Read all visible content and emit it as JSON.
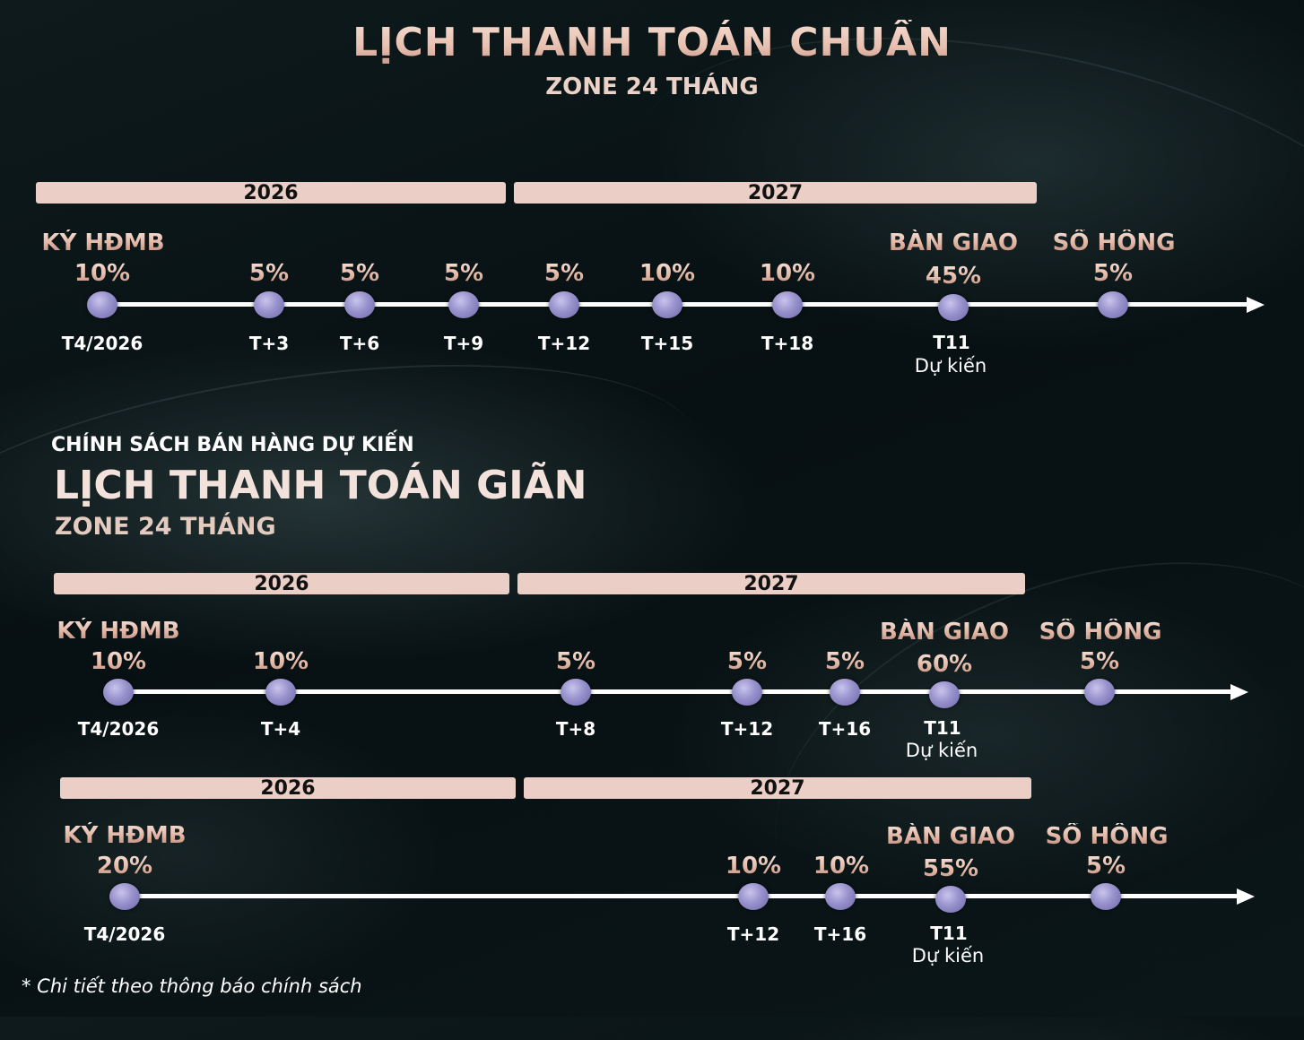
{
  "header": {
    "title": "LỊCH THANH TOÁN CHUẨN",
    "subtitle": "ZONE 24 THÁNG"
  },
  "section2": {
    "policy_label": "CHÍNH SÁCH BÁN HÀNG DỰ KIẾN",
    "title": "LỊCH THANH TOÁN GIÃN",
    "subtitle": "ZONE 24 THÁNG"
  },
  "timeline1": {
    "years": [
      "2026",
      "2027"
    ],
    "milestones": [
      {
        "label": "KÝ HĐMB",
        "pct": "10%",
        "date": "T4/2026",
        "note": ""
      },
      {
        "label": "",
        "pct": "5%",
        "date": "T+3",
        "note": ""
      },
      {
        "label": "",
        "pct": "5%",
        "date": "T+6",
        "note": ""
      },
      {
        "label": "",
        "pct": "5%",
        "date": "T+9",
        "note": ""
      },
      {
        "label": "",
        "pct": "5%",
        "date": "T+12",
        "note": ""
      },
      {
        "label": "",
        "pct": "10%",
        "date": "T+15",
        "note": ""
      },
      {
        "label": "",
        "pct": "10%",
        "date": "T+18",
        "note": ""
      },
      {
        "label": "BÀN GIAO",
        "pct": "45%",
        "date": "T11",
        "note": "Dự kiến"
      },
      {
        "label": "SỔ HỒNG",
        "pct": "5%",
        "date": "",
        "note": ""
      }
    ]
  },
  "timeline2": {
    "years": [
      "2026",
      "2027"
    ],
    "milestones": [
      {
        "label": "KÝ HĐMB",
        "pct": "10%",
        "date": "T4/2026",
        "note": ""
      },
      {
        "label": "",
        "pct": "10%",
        "date": "T+4",
        "note": ""
      },
      {
        "label": "",
        "pct": "5%",
        "date": "T+8",
        "note": ""
      },
      {
        "label": "",
        "pct": "5%",
        "date": "T+12",
        "note": ""
      },
      {
        "label": "",
        "pct": "5%",
        "date": "T+16",
        "note": ""
      },
      {
        "label": "BÀN GIAO",
        "pct": "60%",
        "date": "T11",
        "note": "Dự kiến"
      },
      {
        "label": "SỔ HỒNG",
        "pct": "5%",
        "date": "",
        "note": ""
      }
    ]
  },
  "timeline3": {
    "years": [
      "2026",
      "2027"
    ],
    "milestones": [
      {
        "label": "KÝ HĐMB",
        "pct": "20%",
        "date": "T4/2026",
        "note": ""
      },
      {
        "label": "",
        "pct": "10%",
        "date": "T+12",
        "note": ""
      },
      {
        "label": "",
        "pct": "10%",
        "date": "T+16",
        "note": ""
      },
      {
        "label": "BÀN GIAO",
        "pct": "55%",
        "date": "T11",
        "note": "Dự kiến"
      },
      {
        "label": "SỔ HỒNG",
        "pct": "5%",
        "date": "",
        "note": ""
      }
    ]
  },
  "footnote": "* Chi tiết theo thông báo chính sách",
  "colors": {
    "background": "#0b1618",
    "year_bar": "#ebcfc6",
    "rose_gold": "#e4b9a7",
    "dot": "#9791cc",
    "line": "#ffffff"
  }
}
